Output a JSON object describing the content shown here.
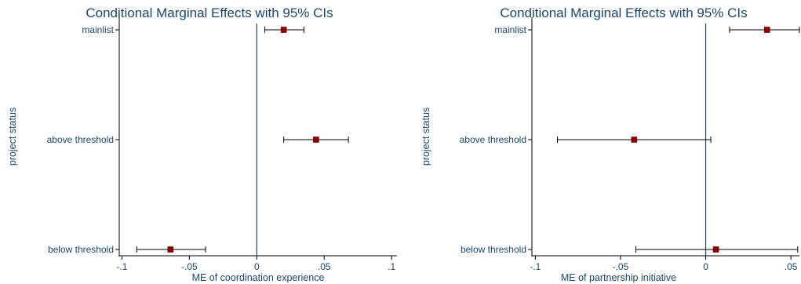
{
  "chart_data": [
    {
      "type": "scatter",
      "title": "Conditional Marginal Effects with 95% CIs",
      "xlabel": "ME of coordination experience",
      "ylabel": "project status",
      "categories": [
        "mainlist",
        "above threshold",
        "below threshold"
      ],
      "estimates": [
        0.02,
        0.044,
        -0.064
      ],
      "ci_low": [
        0.006,
        0.02,
        -0.089
      ],
      "ci_high": [
        0.035,
        0.068,
        -0.038
      ],
      "xlim": [
        -0.102,
        0.104
      ],
      "xticks": [
        -0.1,
        -0.05,
        0,
        0.05,
        0.1
      ],
      "xtick_labels": [
        "-.1",
        "-.05",
        "0",
        ".05",
        ".1"
      ],
      "reference_line": 0,
      "grid": false,
      "colors": {
        "marker": "#8b0000",
        "text": "#1a476f",
        "refline": "#1a476f",
        "ci": "#000000"
      }
    },
    {
      "type": "scatter",
      "title": "Conditional Marginal Effects with 95% CIs",
      "xlabel": "ME of partnership initiative",
      "ylabel": "project status",
      "categories": [
        "mainlist",
        "above threshold",
        "below threshold"
      ],
      "estimates": [
        0.036,
        -0.042,
        0.006
      ],
      "ci_low": [
        0.014,
        -0.087,
        -0.041
      ],
      "ci_high": [
        0.055,
        0.003,
        0.054
      ],
      "xlim": [
        -0.102,
        0.055
      ],
      "xticks": [
        -0.1,
        -0.05,
        0,
        0.05
      ],
      "xtick_labels": [
        "-.1",
        "-.05",
        "0",
        ".05"
      ],
      "reference_line": 0,
      "grid": false,
      "colors": {
        "marker": "#8b0000",
        "text": "#1a476f",
        "refline": "#1a476f",
        "ci": "#000000"
      }
    }
  ]
}
